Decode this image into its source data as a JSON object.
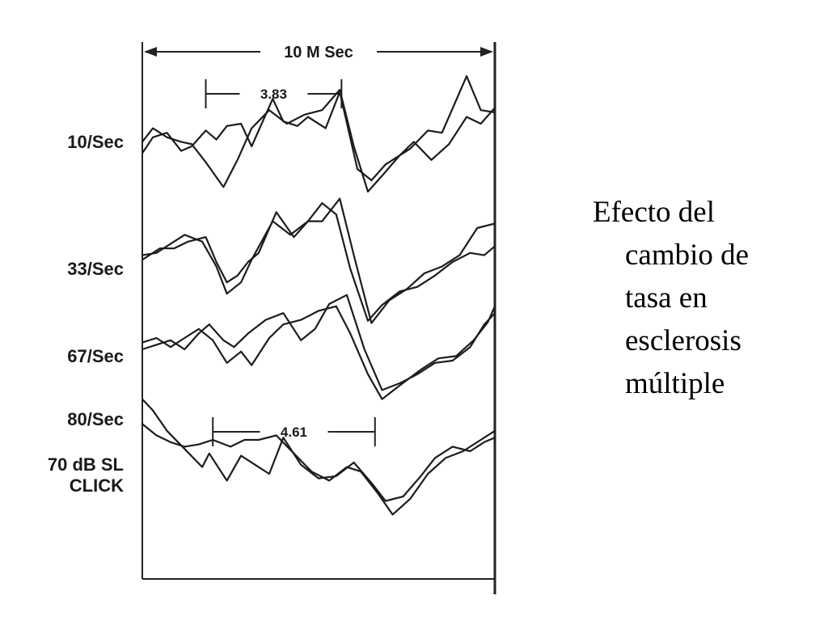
{
  "caption": {
    "lines": [
      "Efecto del",
      "cambio de",
      "tasa en",
      "esclerosis",
      "múltiple"
    ]
  },
  "chart_data": {
    "type": "line",
    "title": "",
    "time_scale_label": "10 M Sec",
    "x_unit": "ms",
    "xlim": [
      0,
      10
    ],
    "grid": false,
    "legend": "none",
    "row_labels": [
      "10/Sec",
      "33/Sec",
      "67/Sec",
      "80/Sec"
    ],
    "stimulus_label": [
      "70 dB SL",
      "CLICK"
    ],
    "measurements": [
      {
        "label": "3.83",
        "row": 0,
        "from_ms": 1.8,
        "to_ms": 5.65
      },
      {
        "label": "4.61",
        "row": 3,
        "from_ms": 2.0,
        "to_ms": 6.6
      }
    ],
    "series": [
      {
        "row": 0,
        "trace": 1,
        "points": [
          [
            0,
            0.2
          ],
          [
            0.3,
            0.9
          ],
          [
            0.7,
            1.1
          ],
          [
            1.1,
            0.3
          ],
          [
            1.4,
            0.5
          ],
          [
            1.8,
            1.2
          ],
          [
            2.1,
            0.8
          ],
          [
            2.4,
            1.4
          ],
          [
            2.8,
            1.5
          ],
          [
            3.1,
            0.5
          ],
          [
            3.7,
            2.6
          ],
          [
            4.0,
            1.6
          ],
          [
            4.4,
            1.4
          ],
          [
            4.7,
            1.8
          ],
          [
            5.2,
            1.3
          ],
          [
            5.6,
            2.9
          ],
          [
            6.1,
            -0.5
          ],
          [
            6.5,
            -1.0
          ],
          [
            6.9,
            -0.3
          ],
          [
            7.6,
            0.4
          ],
          [
            8.1,
            1.2
          ],
          [
            8.5,
            1.1
          ],
          [
            9.2,
            3.6
          ],
          [
            9.6,
            2.1
          ],
          [
            10,
            2.0
          ]
        ]
      },
      {
        "row": 0,
        "trace": 2,
        "points": [
          [
            0,
            0.7
          ],
          [
            0.3,
            1.3
          ],
          [
            0.7,
            0.9
          ],
          [
            1.1,
            0.7
          ],
          [
            1.4,
            0.6
          ],
          [
            1.8,
            -0.2
          ],
          [
            2.3,
            -1.3
          ],
          [
            2.7,
            -0.1
          ],
          [
            3.1,
            1.3
          ],
          [
            3.6,
            2.1
          ],
          [
            4.1,
            1.5
          ],
          [
            4.6,
            1.9
          ],
          [
            5.1,
            2.1
          ],
          [
            5.6,
            3.0
          ],
          [
            6.0,
            0.5
          ],
          [
            6.4,
            -1.5
          ],
          [
            6.8,
            -0.8
          ],
          [
            7.3,
            0.1
          ],
          [
            7.7,
            0.7
          ],
          [
            8.2,
            -0.1
          ],
          [
            8.7,
            0.6
          ],
          [
            9.2,
            1.8
          ],
          [
            9.6,
            1.5
          ],
          [
            10,
            2.2
          ]
        ]
      },
      {
        "row": 1,
        "trace": 1,
        "points": [
          [
            0,
            0.6
          ],
          [
            0.5,
            1.1
          ],
          [
            0.9,
            1.1
          ],
          [
            1.3,
            1.4
          ],
          [
            1.8,
            1.6
          ],
          [
            2.1,
            0.5
          ],
          [
            2.4,
            -0.4
          ],
          [
            2.7,
            -0.1
          ],
          [
            3.0,
            0.5
          ],
          [
            3.3,
            0.9
          ],
          [
            3.8,
            2.7
          ],
          [
            4.3,
            1.6
          ],
          [
            4.7,
            2.3
          ],
          [
            5.1,
            2.3
          ],
          [
            5.6,
            3.3
          ],
          [
            6.0,
            0.8
          ],
          [
            6.5,
            -2.2
          ],
          [
            7.0,
            -1.2
          ],
          [
            7.5,
            -0.7
          ],
          [
            8.0,
            0.0
          ],
          [
            8.5,
            0.3
          ],
          [
            9.0,
            0.8
          ],
          [
            9.5,
            2.0
          ],
          [
            10,
            2.2
          ]
        ]
      },
      {
        "row": 1,
        "trace": 2,
        "points": [
          [
            0,
            0.8
          ],
          [
            0.4,
            0.9
          ],
          [
            0.8,
            1.3
          ],
          [
            1.2,
            1.7
          ],
          [
            1.7,
            1.4
          ],
          [
            2.1,
            0.3
          ],
          [
            2.4,
            -0.9
          ],
          [
            2.8,
            -0.4
          ],
          [
            3.1,
            0.6
          ],
          [
            3.7,
            2.3
          ],
          [
            4.2,
            1.7
          ],
          [
            4.7,
            2.3
          ],
          [
            5.1,
            3.1
          ],
          [
            5.5,
            2.6
          ],
          [
            5.9,
            0.2
          ],
          [
            6.4,
            -2.1
          ],
          [
            6.8,
            -1.4
          ],
          [
            7.3,
            -0.8
          ],
          [
            7.8,
            -0.6
          ],
          [
            8.3,
            -0.1
          ],
          [
            8.8,
            0.5
          ],
          [
            9.3,
            0.9
          ],
          [
            9.7,
            0.8
          ],
          [
            10,
            1.2
          ]
        ]
      },
      {
        "row": 2,
        "trace": 1,
        "points": [
          [
            0,
            0.5
          ],
          [
            0.4,
            0.7
          ],
          [
            0.8,
            0.9
          ],
          [
            1.2,
            0.5
          ],
          [
            1.6,
            1.2
          ],
          [
            1.9,
            1.6
          ],
          [
            2.3,
            0.9
          ],
          [
            2.6,
            0.6
          ],
          [
            3.0,
            1.2
          ],
          [
            3.5,
            1.8
          ],
          [
            4.0,
            2.1
          ],
          [
            4.5,
            0.9
          ],
          [
            4.9,
            1.4
          ],
          [
            5.3,
            2.5
          ],
          [
            5.8,
            2.9
          ],
          [
            6.3,
            0.5
          ],
          [
            6.8,
            -1.3
          ],
          [
            7.3,
            -1.0
          ],
          [
            7.8,
            -0.6
          ],
          [
            8.3,
            -0.1
          ],
          [
            8.8,
            0.0
          ],
          [
            9.3,
            0.6
          ],
          [
            9.7,
            1.6
          ],
          [
            10,
            2.1
          ]
        ]
      },
      {
        "row": 2,
        "trace": 2,
        "points": [
          [
            0,
            0.8
          ],
          [
            0.4,
            1.0
          ],
          [
            0.8,
            0.6
          ],
          [
            1.2,
            1.0
          ],
          [
            1.6,
            1.4
          ],
          [
            2.0,
            0.9
          ],
          [
            2.4,
            -0.1
          ],
          [
            2.8,
            0.4
          ],
          [
            3.1,
            -0.2
          ],
          [
            3.6,
            1.0
          ],
          [
            4.0,
            1.6
          ],
          [
            4.5,
            1.8
          ],
          [
            5.0,
            2.2
          ],
          [
            5.5,
            2.4
          ],
          [
            5.9,
            1.2
          ],
          [
            6.4,
            -0.6
          ],
          [
            6.8,
            -1.7
          ],
          [
            7.3,
            -1.1
          ],
          [
            7.9,
            -0.4
          ],
          [
            8.4,
            0.1
          ],
          [
            8.9,
            0.2
          ],
          [
            9.4,
            0.9
          ],
          [
            9.8,
            1.7
          ],
          [
            10,
            2.4
          ]
        ]
      },
      {
        "row": 3,
        "trace": 1,
        "points": [
          [
            0,
            2.8
          ],
          [
            0.3,
            2.3
          ],
          [
            0.7,
            1.4
          ],
          [
            1.2,
            0.6
          ],
          [
            1.7,
            -0.2
          ],
          [
            1.9,
            0.4
          ],
          [
            2.4,
            -0.8
          ],
          [
            2.8,
            0.3
          ],
          [
            3.2,
            -0.1
          ],
          [
            3.6,
            -0.5
          ],
          [
            4.0,
            1.1
          ],
          [
            4.5,
            -0.1
          ],
          [
            5.0,
            -0.7
          ],
          [
            5.5,
            -0.6
          ],
          [
            6.0,
            0.0
          ],
          [
            6.5,
            -0.9
          ],
          [
            6.9,
            -1.7
          ],
          [
            7.4,
            -1.5
          ],
          [
            7.9,
            -0.6
          ],
          [
            8.3,
            0.2
          ],
          [
            8.8,
            0.7
          ],
          [
            9.3,
            0.5
          ],
          [
            9.7,
            0.9
          ],
          [
            10,
            1.1
          ]
        ]
      },
      {
        "row": 3,
        "trace": 2,
        "points": [
          [
            0,
            1.7
          ],
          [
            0.4,
            1.2
          ],
          [
            0.8,
            0.9
          ],
          [
            1.2,
            0.7
          ],
          [
            1.6,
            0.8
          ],
          [
            2.0,
            1.0
          ],
          [
            2.5,
            0.7
          ],
          [
            2.9,
            1.0
          ],
          [
            3.3,
            1.0
          ],
          [
            3.8,
            1.2
          ],
          [
            4.3,
            0.4
          ],
          [
            4.8,
            -0.4
          ],
          [
            5.3,
            -0.8
          ],
          [
            5.8,
            -0.2
          ],
          [
            6.2,
            -0.4
          ],
          [
            6.7,
            -1.4
          ],
          [
            7.1,
            -2.3
          ],
          [
            7.6,
            -1.6
          ],
          [
            8.1,
            -0.5
          ],
          [
            8.6,
            0.2
          ],
          [
            9.1,
            0.5
          ],
          [
            9.6,
            1.0
          ],
          [
            10,
            1.4
          ]
        ]
      }
    ]
  }
}
